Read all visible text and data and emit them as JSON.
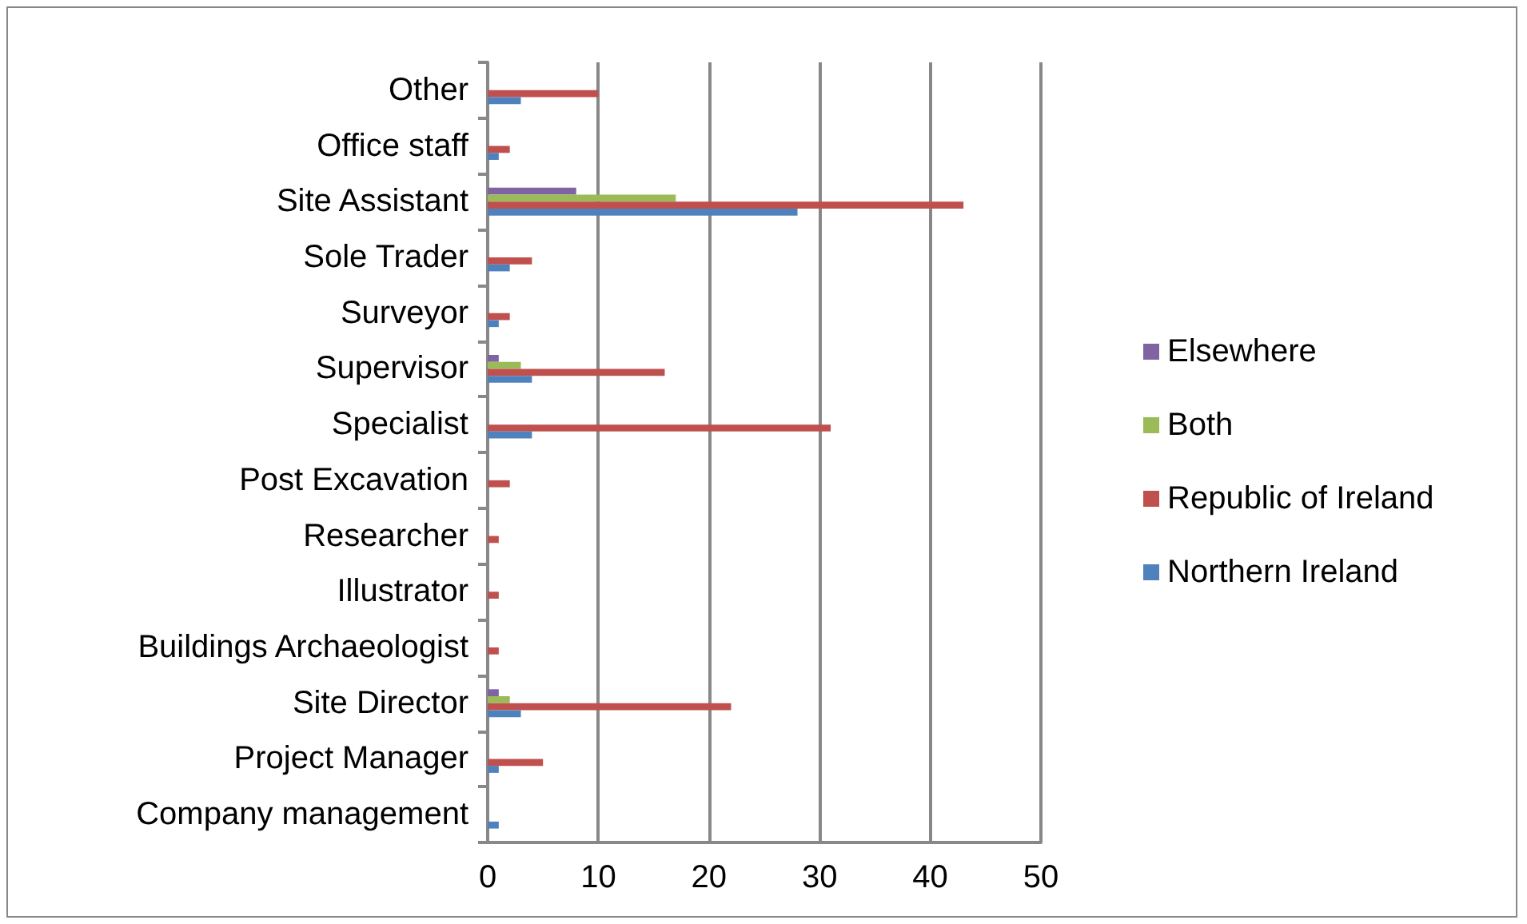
{
  "chart_data": {
    "type": "bar",
    "orientation": "horizontal",
    "categories": [
      "Other",
      "Office staff",
      "Site Assistant",
      "Sole Trader",
      "Surveyor",
      "Supervisor",
      "Specialist",
      "Post Excavation",
      "Researcher",
      "Illustrator",
      "Buildings Archaeologist",
      "Site Director",
      "Project Manager",
      "Company management"
    ],
    "series": [
      {
        "name": "Elsewhere",
        "color": "#8064a2",
        "values": [
          null,
          null,
          8,
          null,
          null,
          1,
          null,
          null,
          null,
          null,
          null,
          1,
          null,
          null
        ]
      },
      {
        "name": "Both",
        "color": "#9bbb59",
        "values": [
          null,
          null,
          17,
          null,
          null,
          3,
          null,
          null,
          null,
          null,
          null,
          2,
          null,
          null
        ]
      },
      {
        "name": "Republic of Ireland",
        "color": "#c0504d",
        "values": [
          10,
          2,
          43,
          4,
          2,
          16,
          31,
          2,
          1,
          1,
          1,
          22,
          5,
          null
        ]
      },
      {
        "name": "Northern Ireland",
        "color": "#4f81bd",
        "values": [
          3,
          1,
          28,
          2,
          1,
          4,
          4,
          null,
          null,
          null,
          null,
          3,
          1,
          1
        ]
      }
    ],
    "xlim": [
      0,
      50
    ],
    "xticks": [
      0,
      10,
      20,
      30,
      40,
      50
    ],
    "grid": "x",
    "legend": "right"
  }
}
